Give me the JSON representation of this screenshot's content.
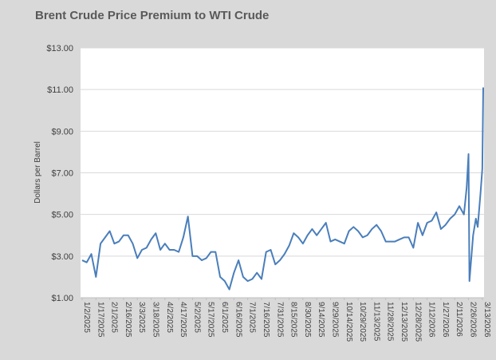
{
  "chart_data": {
    "type": "line",
    "title": "Brent Crude Price Premium to WTI Crude",
    "y_label": "Dollars per Barrel",
    "ylim": [
      1,
      13
    ],
    "yticks": [
      {
        "value": 1,
        "label": "$1.00"
      },
      {
        "value": 3,
        "label": "$3.00"
      },
      {
        "value": 5,
        "label": "$5.00"
      },
      {
        "value": 7,
        "label": "$7.00"
      },
      {
        "value": 9,
        "label": "$9.00"
      },
      {
        "value": 11,
        "label": "$11.00"
      },
      {
        "value": 13,
        "label": "$13.00"
      }
    ],
    "xlim": [
      "1/2/2025",
      "3/14/2026"
    ],
    "xticks": [
      "1/2/2025",
      "1/17/2025",
      "2/1/2025",
      "2/16/2025",
      "3/3/2025",
      "3/18/2025",
      "4/2/2025",
      "4/17/2025",
      "5/2/2025",
      "5/17/2025",
      "6/1/2025",
      "6/16/2025",
      "7/1/2025",
      "7/16/2025",
      "7/31/2025",
      "8/15/2025",
      "8/30/2025",
      "9/14/2025",
      "9/29/2025",
      "10/14/2025",
      "10/29/2025",
      "11/13/2025",
      "11/28/2025",
      "12/13/2025",
      "12/28/2025",
      "1/12/2026",
      "1/27/2026",
      "2/11/2026",
      "2/26/2026",
      "3/13/2026"
    ],
    "grid": true,
    "x": [
      "1/2/2025",
      "1/7/2025",
      "1/12/2025",
      "1/17/2025",
      "1/22/2025",
      "1/27/2025",
      "2/1/2025",
      "2/6/2025",
      "2/11/2025",
      "2/16/2025",
      "2/21/2025",
      "2/26/2025",
      "3/3/2025",
      "3/8/2025",
      "3/13/2025",
      "3/18/2025",
      "3/23/2025",
      "3/28/2025",
      "4/2/2025",
      "4/7/2025",
      "4/12/2025",
      "4/17/2025",
      "4/22/2025",
      "4/27/2025",
      "5/2/2025",
      "5/7/2025",
      "5/12/2025",
      "5/17/2025",
      "5/22/2025",
      "5/27/2025",
      "6/1/2025",
      "6/6/2025",
      "6/11/2025",
      "6/16/2025",
      "6/21/2025",
      "6/26/2025",
      "7/1/2025",
      "7/6/2025",
      "7/11/2025",
      "7/16/2025",
      "7/21/2025",
      "7/26/2025",
      "7/31/2025",
      "8/5/2025",
      "8/10/2025",
      "8/15/2025",
      "8/20/2025",
      "8/25/2025",
      "8/30/2025",
      "9/4/2025",
      "9/9/2025",
      "9/14/2025",
      "9/19/2025",
      "9/24/2025",
      "9/29/2025",
      "10/4/2025",
      "10/9/2025",
      "10/14/2025",
      "10/19/2025",
      "10/24/2025",
      "10/29/2025",
      "11/3/2025",
      "11/8/2025",
      "11/13/2025",
      "11/18/2025",
      "11/23/2025",
      "11/28/2025",
      "12/3/2025",
      "12/8/2025",
      "12/13/2025",
      "12/18/2025",
      "12/23/2025",
      "12/28/2025",
      "1/2/2026",
      "1/7/2026",
      "1/12/2026",
      "1/17/2026",
      "1/22/2026",
      "1/27/2026",
      "2/1/2026",
      "2/6/2026",
      "2/11/2026",
      "2/16/2026",
      "2/21/2026",
      "2/24/2026",
      "2/26/2026",
      "2/27/2026",
      "3/3/2026",
      "3/6/2026",
      "3/8/2026",
      "3/11/2026",
      "3/13/2026",
      "3/14/2026"
    ],
    "series": [
      {
        "name": "Brent Crude Price Premium to WTI Crude",
        "color": "#4a7ebb",
        "values": [
          2.8,
          2.7,
          3.1,
          2.0,
          3.6,
          3.9,
          4.2,
          3.6,
          3.7,
          4.0,
          4.0,
          3.6,
          2.9,
          3.3,
          3.4,
          3.8,
          4.1,
          3.3,
          3.6,
          3.3,
          3.3,
          3.2,
          3.9,
          4.9,
          3.0,
          3.0,
          2.8,
          2.9,
          3.2,
          3.2,
          2.0,
          1.8,
          1.4,
          2.2,
          2.8,
          2.0,
          1.8,
          1.9,
          2.2,
          1.9,
          3.2,
          3.3,
          2.6,
          2.8,
          3.1,
          3.5,
          4.1,
          3.9,
          3.6,
          4.0,
          4.3,
          4.0,
          4.3,
          4.6,
          3.7,
          3.8,
          3.7,
          3.6,
          4.2,
          4.4,
          4.2,
          3.9,
          4.0,
          4.3,
          4.5,
          4.2,
          3.7,
          3.7,
          3.7,
          3.8,
          3.9,
          3.9,
          3.4,
          4.6,
          4.0,
          4.6,
          4.7,
          5.1,
          4.3,
          4.5,
          4.8,
          5.0,
          5.4,
          5.0,
          6.3,
          7.9,
          1.8,
          4.0,
          4.8,
          4.4,
          6.0,
          7.2,
          11.1
        ]
      }
    ]
  }
}
